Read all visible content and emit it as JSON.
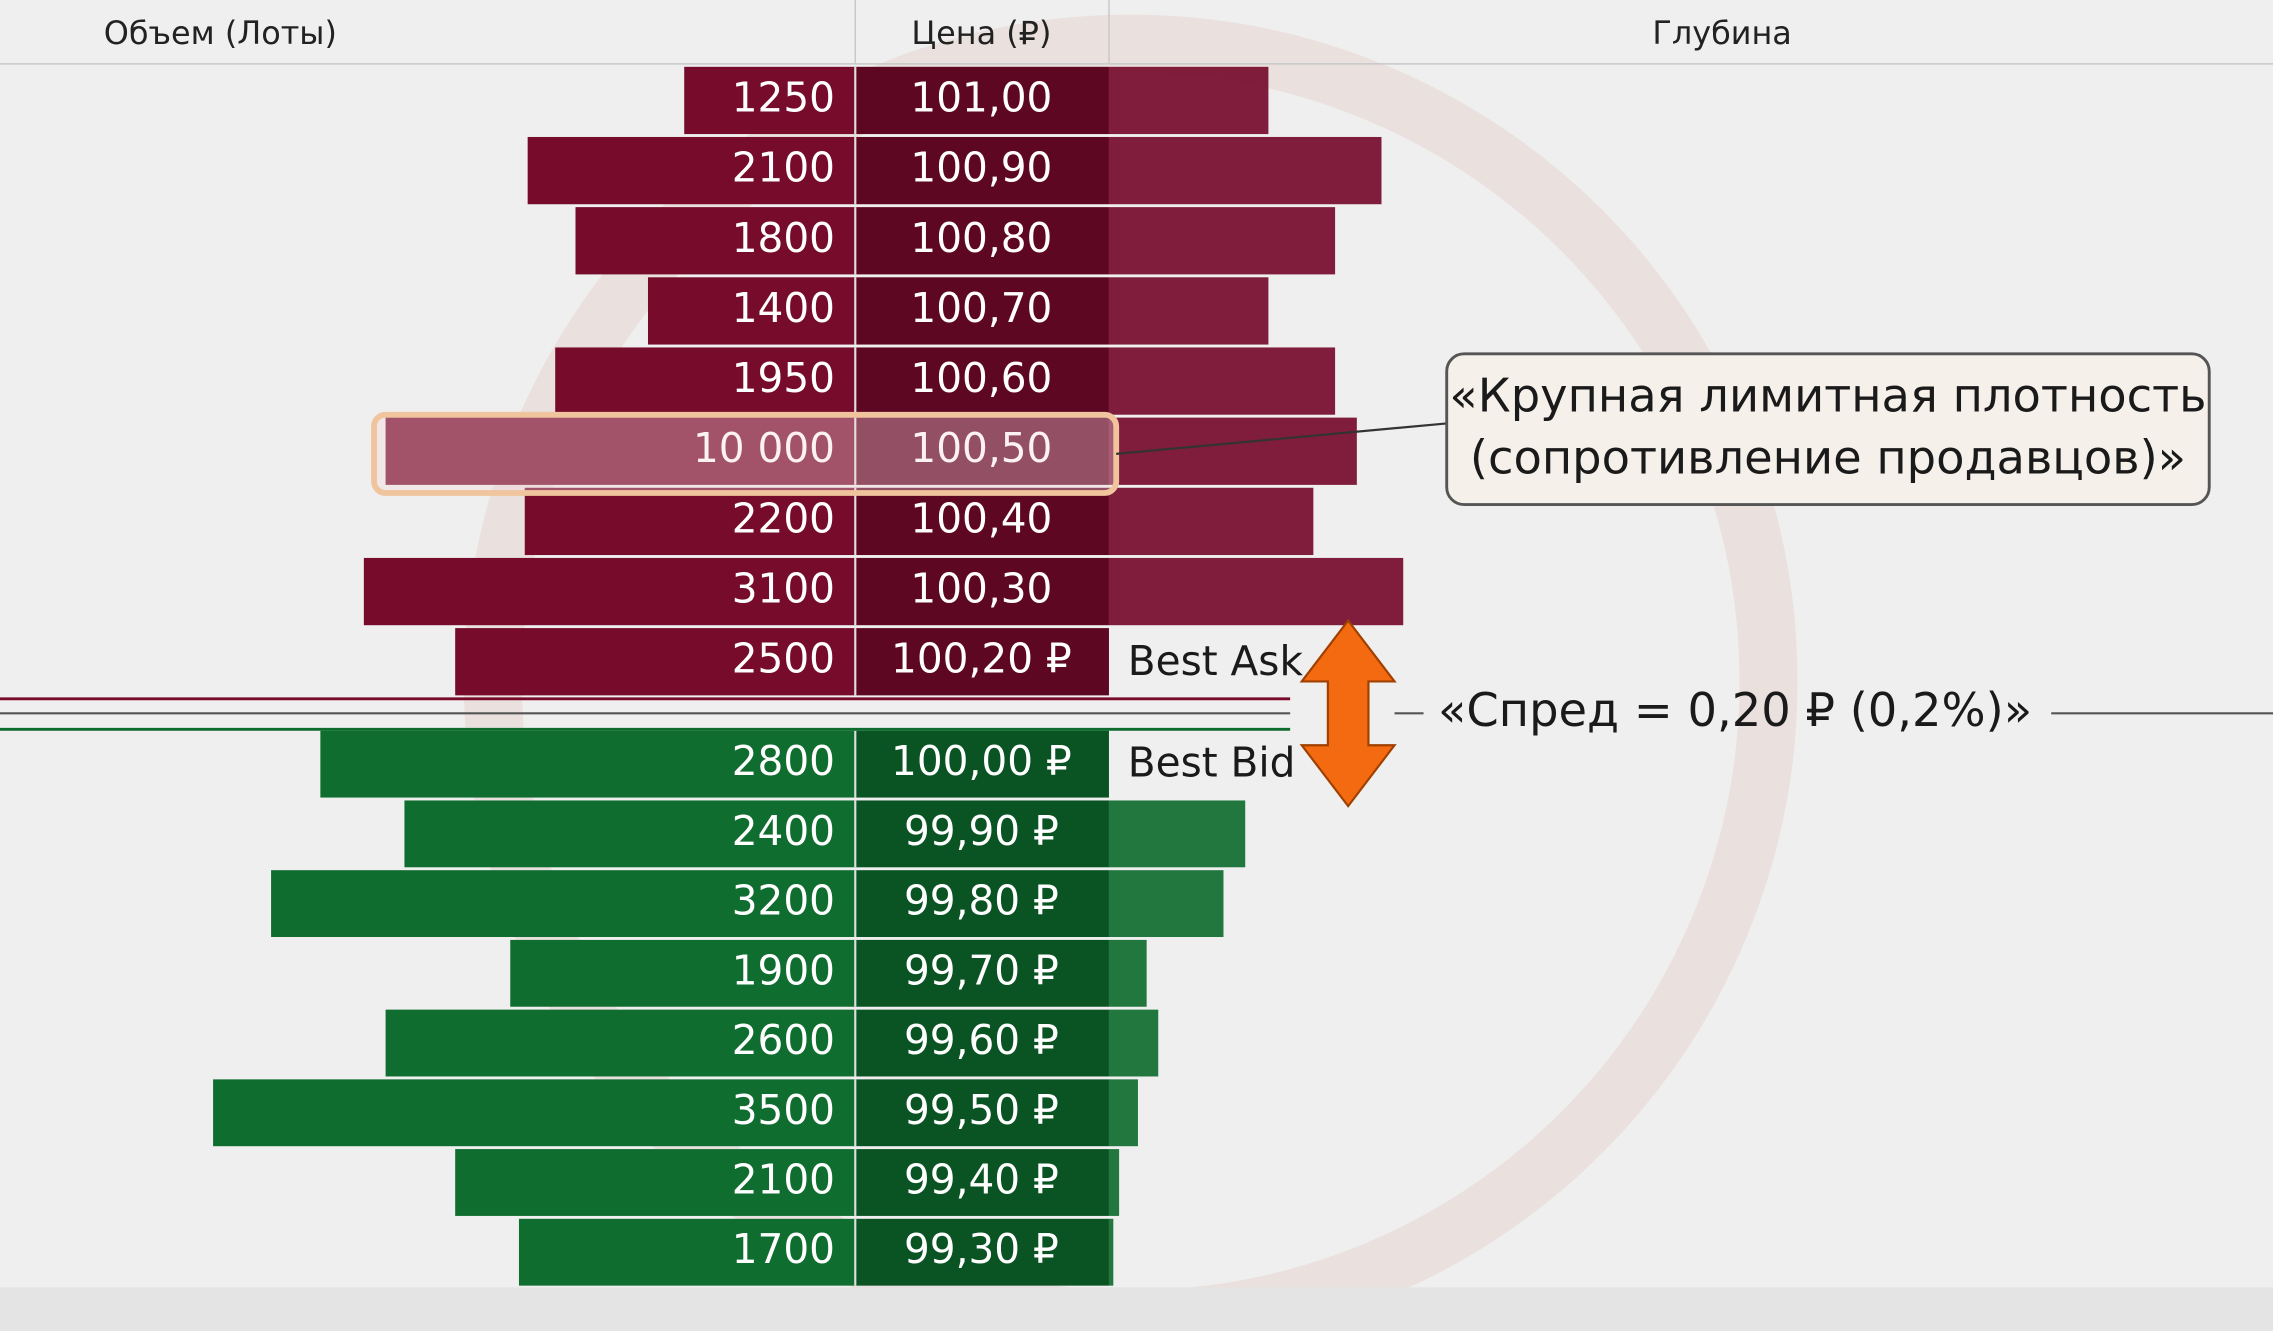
{
  "header": {
    "volume": "Объем (Лоты)",
    "price": "Цена (₽)",
    "depth": "Глубина"
  },
  "asks": [
    {
      "volume": "1250",
      "price": "101,00"
    },
    {
      "volume": "2100",
      "price": "100,90"
    },
    {
      "volume": "1800",
      "price": "100,80"
    },
    {
      "volume": "1400",
      "price": "100,70"
    },
    {
      "volume": "1950",
      "price": "100,60"
    },
    {
      "volume": "10 000",
      "price": "100,50"
    },
    {
      "volume": "2200",
      "price": "100,40"
    },
    {
      "volume": "3100",
      "price": "100,30"
    },
    {
      "volume": "2500",
      "price": "100,20 ₽"
    }
  ],
  "bids": [
    {
      "volume": "2800",
      "price": "100,00 ₽"
    },
    {
      "volume": "2400",
      "price": "99,90 ₽"
    },
    {
      "volume": "3200",
      "price": "99,80 ₽"
    },
    {
      "volume": "1900",
      "price": "99,70 ₽"
    },
    {
      "volume": "2600",
      "price": "99,60 ₽"
    },
    {
      "volume": "3500",
      "price": "99,50 ₽"
    },
    {
      "volume": "2100",
      "price": "99,40 ₽"
    },
    {
      "volume": "1700",
      "price": "99,30 ₽"
    }
  ],
  "best_ask": "Best Ask",
  "best_bid": "Best Bid",
  "annotations": {
    "density": [
      "«Крупная лимитная плотность",
      "(сопротивление продавцов)»"
    ],
    "spread": "«Спред = 0,20 ₽ (0,2%)»"
  }
}
